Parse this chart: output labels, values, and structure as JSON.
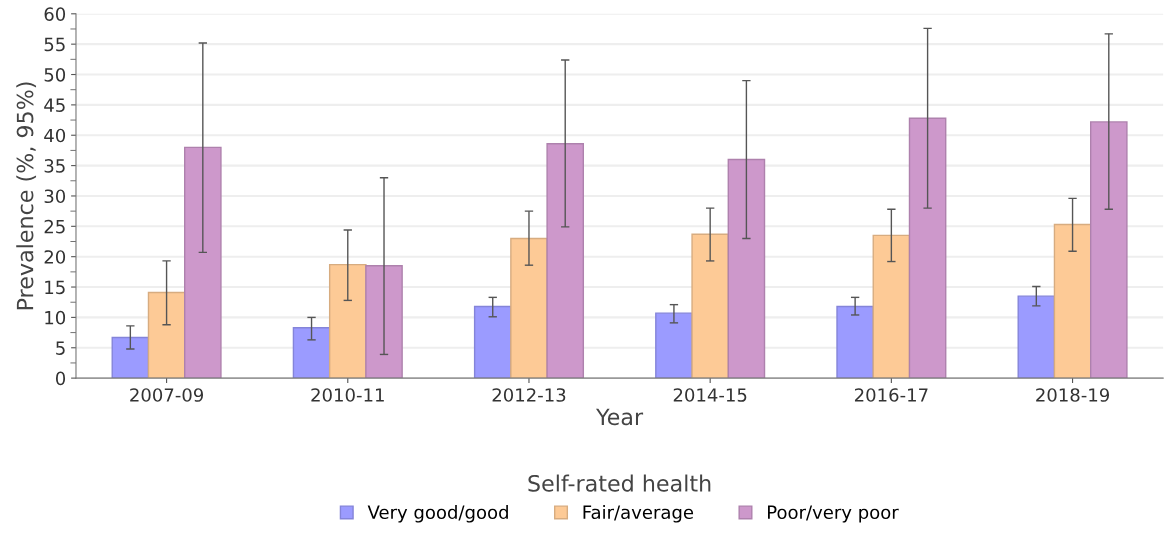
{
  "chart_data": {
    "type": "bar",
    "xlabel": "Year",
    "ylabel": "Prevalence (%, 95%)",
    "legend_title": "Self-rated health",
    "legend": "bottom",
    "grid": "y",
    "categories": [
      "2007-09",
      "2010-11",
      "2012-13",
      "2014-15",
      "2016-17",
      "2018-19"
    ],
    "ylim": [
      0,
      60
    ],
    "yticks": [
      0,
      {
        "value": 2.5,
        "label": null
      },
      5,
      {
        "value": 7.5,
        "label": null
      },
      10,
      {
        "value": 12.5,
        "label": null
      },
      15,
      {
        "value": 17.5,
        "label": null
      },
      20,
      {
        "value": 22.5,
        "label": null
      },
      25,
      {
        "value": 27.5,
        "label": null
      },
      30,
      {
        "value": 32.5,
        "label": null
      },
      35,
      {
        "value": 37.5,
        "label": null
      },
      40,
      {
        "value": 42.5,
        "label": null
      },
      45,
      {
        "value": 47.5,
        "label": null
      },
      50,
      {
        "value": 52.5,
        "label": null
      },
      55,
      {
        "value": 57.5,
        "label": null
      },
      60
    ],
    "series": [
      {
        "name": "Very good/good",
        "color": "#9b9bff",
        "values": [
          6.7,
          8.3,
          11.8,
          10.7,
          11.8,
          13.5
        ],
        "errors": [
          [
            4.8,
            8.6
          ],
          [
            6.3,
            10.0
          ],
          [
            10.1,
            13.3
          ],
          [
            9.1,
            12.1
          ],
          [
            10.4,
            13.3
          ],
          [
            11.9,
            15.1
          ]
        ]
      },
      {
        "name": "Fair/average",
        "color": "#fdca96",
        "values": [
          14.1,
          18.7,
          23.0,
          23.7,
          23.5,
          25.3
        ],
        "errors": [
          [
            8.8,
            19.3
          ],
          [
            12.8,
            24.4
          ],
          [
            18.6,
            27.5
          ],
          [
            19.3,
            28.0
          ],
          [
            19.2,
            27.8
          ],
          [
            20.9,
            29.6
          ]
        ]
      },
      {
        "name": "Poor/very poor",
        "color": "#cd98cb",
        "values": [
          38.0,
          18.5,
          38.6,
          36.0,
          42.8,
          42.2
        ],
        "errors": [
          [
            20.7,
            55.2
          ],
          [
            3.9,
            33.0
          ],
          [
            24.9,
            52.4
          ],
          [
            23.0,
            49.0
          ],
          [
            28.0,
            57.6
          ],
          [
            27.8,
            56.7
          ]
        ]
      }
    ]
  }
}
